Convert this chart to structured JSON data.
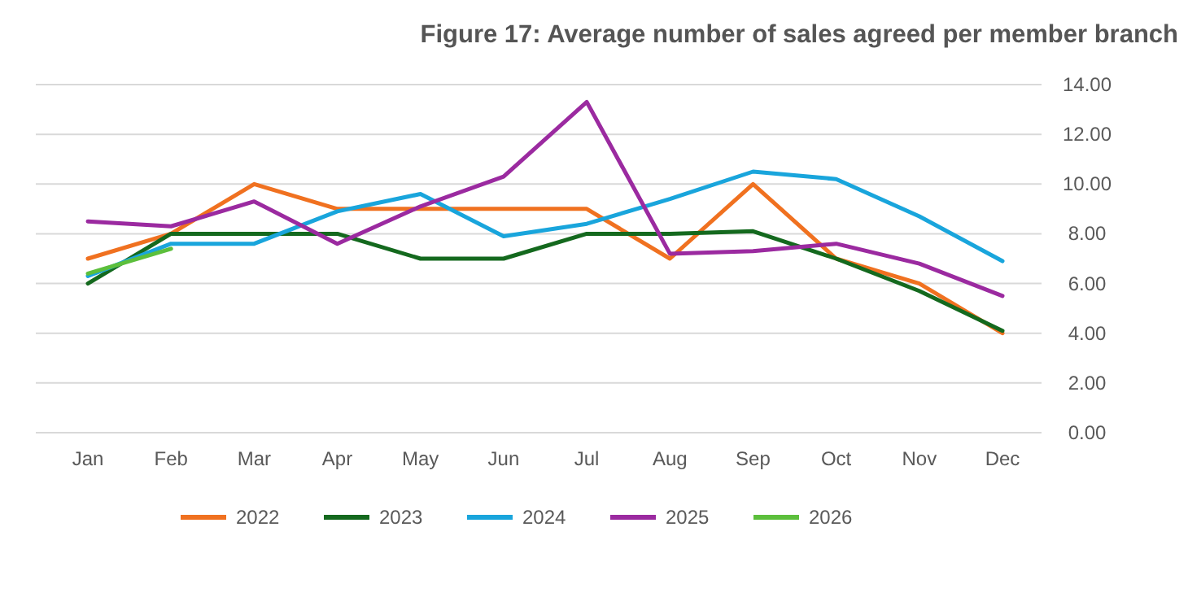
{
  "chart_data": {
    "type": "line",
    "title": "Figure 17: Average number of sales agreed per member branch",
    "categories": [
      "Jan",
      "Feb",
      "Mar",
      "Apr",
      "May",
      "Jun",
      "Jul",
      "Aug",
      "Sep",
      "Oct",
      "Nov",
      "Dec"
    ],
    "series": [
      {
        "name": "2022",
        "color": "#f07120",
        "values": [
          7.0,
          8.0,
          10.0,
          9.0,
          9.0,
          9.0,
          9.0,
          7.0,
          10.0,
          7.0,
          6.0,
          4.0
        ]
      },
      {
        "name": "2023",
        "color": "#14691e",
        "values": [
          6.0,
          8.0,
          8.0,
          8.0,
          7.0,
          7.0,
          8.0,
          8.0,
          8.1,
          7.0,
          5.7,
          4.1
        ]
      },
      {
        "name": "2024",
        "color": "#19a5dc",
        "values": [
          6.3,
          7.6,
          7.6,
          8.9,
          9.6,
          7.9,
          8.4,
          9.4,
          10.5,
          10.2,
          8.7,
          6.9
        ]
      },
      {
        "name": "2025",
        "color": "#9b2aa0",
        "values": [
          8.5,
          8.3,
          9.3,
          7.6,
          9.1,
          10.3,
          13.3,
          7.2,
          7.3,
          7.6,
          6.8,
          5.5
        ]
      },
      {
        "name": "2026",
        "color": "#5cbf3c",
        "values": [
          6.4,
          7.4,
          null,
          null,
          null,
          null,
          null,
          null,
          null,
          null,
          null,
          null
        ]
      }
    ],
    "ylim": [
      0,
      14
    ],
    "yticks": [
      {
        "value": 0,
        "label": "0.00"
      },
      {
        "value": 2,
        "label": "2.00"
      },
      {
        "value": 4,
        "label": "4.00"
      },
      {
        "value": 6,
        "label": "6.00"
      },
      {
        "value": 8,
        "label": "8.00"
      },
      {
        "value": 10,
        "label": "10.00"
      },
      {
        "value": 12,
        "label": "12.00"
      },
      {
        "value": 14,
        "label": "14.00"
      }
    ],
    "grid": "y",
    "legend": "bottom",
    "marker": "none",
    "line_style": "solid"
  }
}
